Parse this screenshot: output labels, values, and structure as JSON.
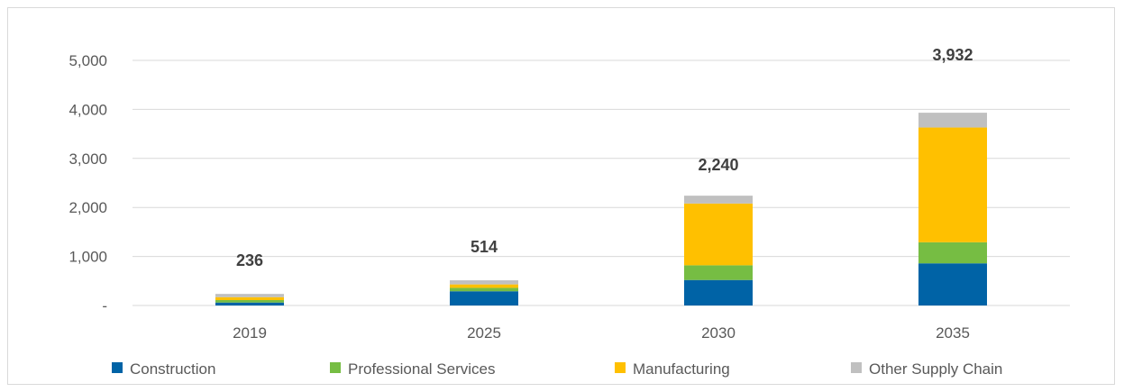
{
  "chart_data": {
    "type": "bar",
    "stacked": true,
    "categories": [
      "2019",
      "2025",
      "2030",
      "2035"
    ],
    "series": [
      {
        "name": "Construction",
        "color": "#0063A6",
        "values": [
          60,
          290,
          520,
          860
        ]
      },
      {
        "name": "Professional Services",
        "color": "#76BD43",
        "values": [
          50,
          70,
          300,
          430
        ]
      },
      {
        "name": "Manufacturing",
        "color": "#FFC000",
        "values": [
          60,
          70,
          1260,
          2340
        ]
      },
      {
        "name": "Other Supply Chain",
        "color": "#C0C0C0",
        "values": [
          66,
          84,
          160,
          302
        ]
      }
    ],
    "totals": [
      236,
      514,
      2240,
      3932
    ],
    "total_labels": [
      "236",
      "514",
      "2,240",
      "3,932"
    ],
    "y_tick_values": [
      0,
      1000,
      2000,
      3000,
      4000,
      5000
    ],
    "y_tick_labels": [
      "-",
      "1,000",
      "2,000",
      "3,000",
      "4,000",
      "5,000"
    ],
    "ylim": [
      0,
      5000
    ],
    "grid": true,
    "legend_position": "bottom",
    "title": "",
    "xlabel": "",
    "ylabel": ""
  }
}
